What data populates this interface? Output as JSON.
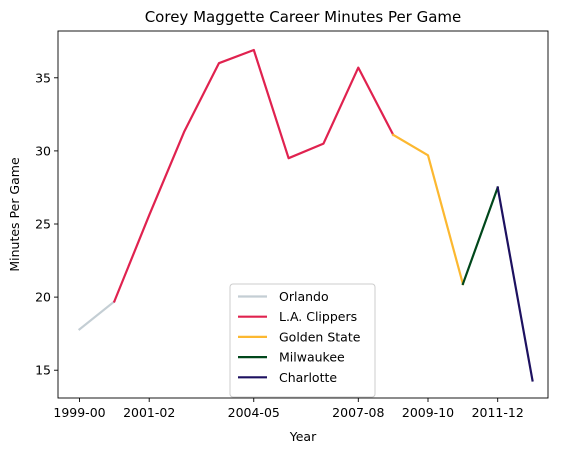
{
  "chart_data": {
    "type": "line",
    "title": "Corey Maggette Career Minutes Per Game",
    "xlabel": "Year",
    "ylabel": "Minutes Per Game",
    "x": [
      "1999-00",
      "2000-01",
      "2001-02",
      "2002-03",
      "2003-04",
      "2004-05",
      "2005-06",
      "2006-07",
      "2007-08",
      "2008-09",
      "2009-10",
      "2010-11",
      "2011-12",
      "2012-13"
    ],
    "x_ticks": [
      "1999-00",
      "2001-02",
      "2004-05",
      "2007-08",
      "2009-10",
      "2011-12"
    ],
    "y_ticks": [
      15,
      20,
      25,
      30,
      35
    ],
    "ylim": [
      13.1,
      38.2
    ],
    "grid": false,
    "legend_position": "lower center",
    "series": [
      {
        "name": "Orlando",
        "color": "#c4ced4",
        "x": [
          "1999-00",
          "2000-01"
        ],
        "values": [
          17.8,
          19.7
        ]
      },
      {
        "name": "L.A. Clippers",
        "color": "#e0224f",
        "x": [
          "2000-01",
          "2001-02",
          "2002-03",
          "2003-04",
          "2004-05",
          "2005-06",
          "2006-07",
          "2007-08",
          "2008-09"
        ],
        "values": [
          19.7,
          25.6,
          31.3,
          36.0,
          36.9,
          29.5,
          30.5,
          35.7,
          31.1
        ]
      },
      {
        "name": "Golden State",
        "color": "#fcb830",
        "x": [
          "2008-09",
          "2009-10",
          "2010-11"
        ],
        "values": [
          31.1,
          29.7,
          20.9
        ]
      },
      {
        "name": "Milwaukee",
        "color": "#00471b",
        "x": [
          "2010-11",
          "2011-12"
        ],
        "values": [
          20.9,
          27.5
        ]
      },
      {
        "name": "Charlotte",
        "color": "#1d1160",
        "x": [
          "2011-12",
          "2012-13"
        ],
        "values": [
          27.5,
          14.3
        ]
      }
    ]
  }
}
